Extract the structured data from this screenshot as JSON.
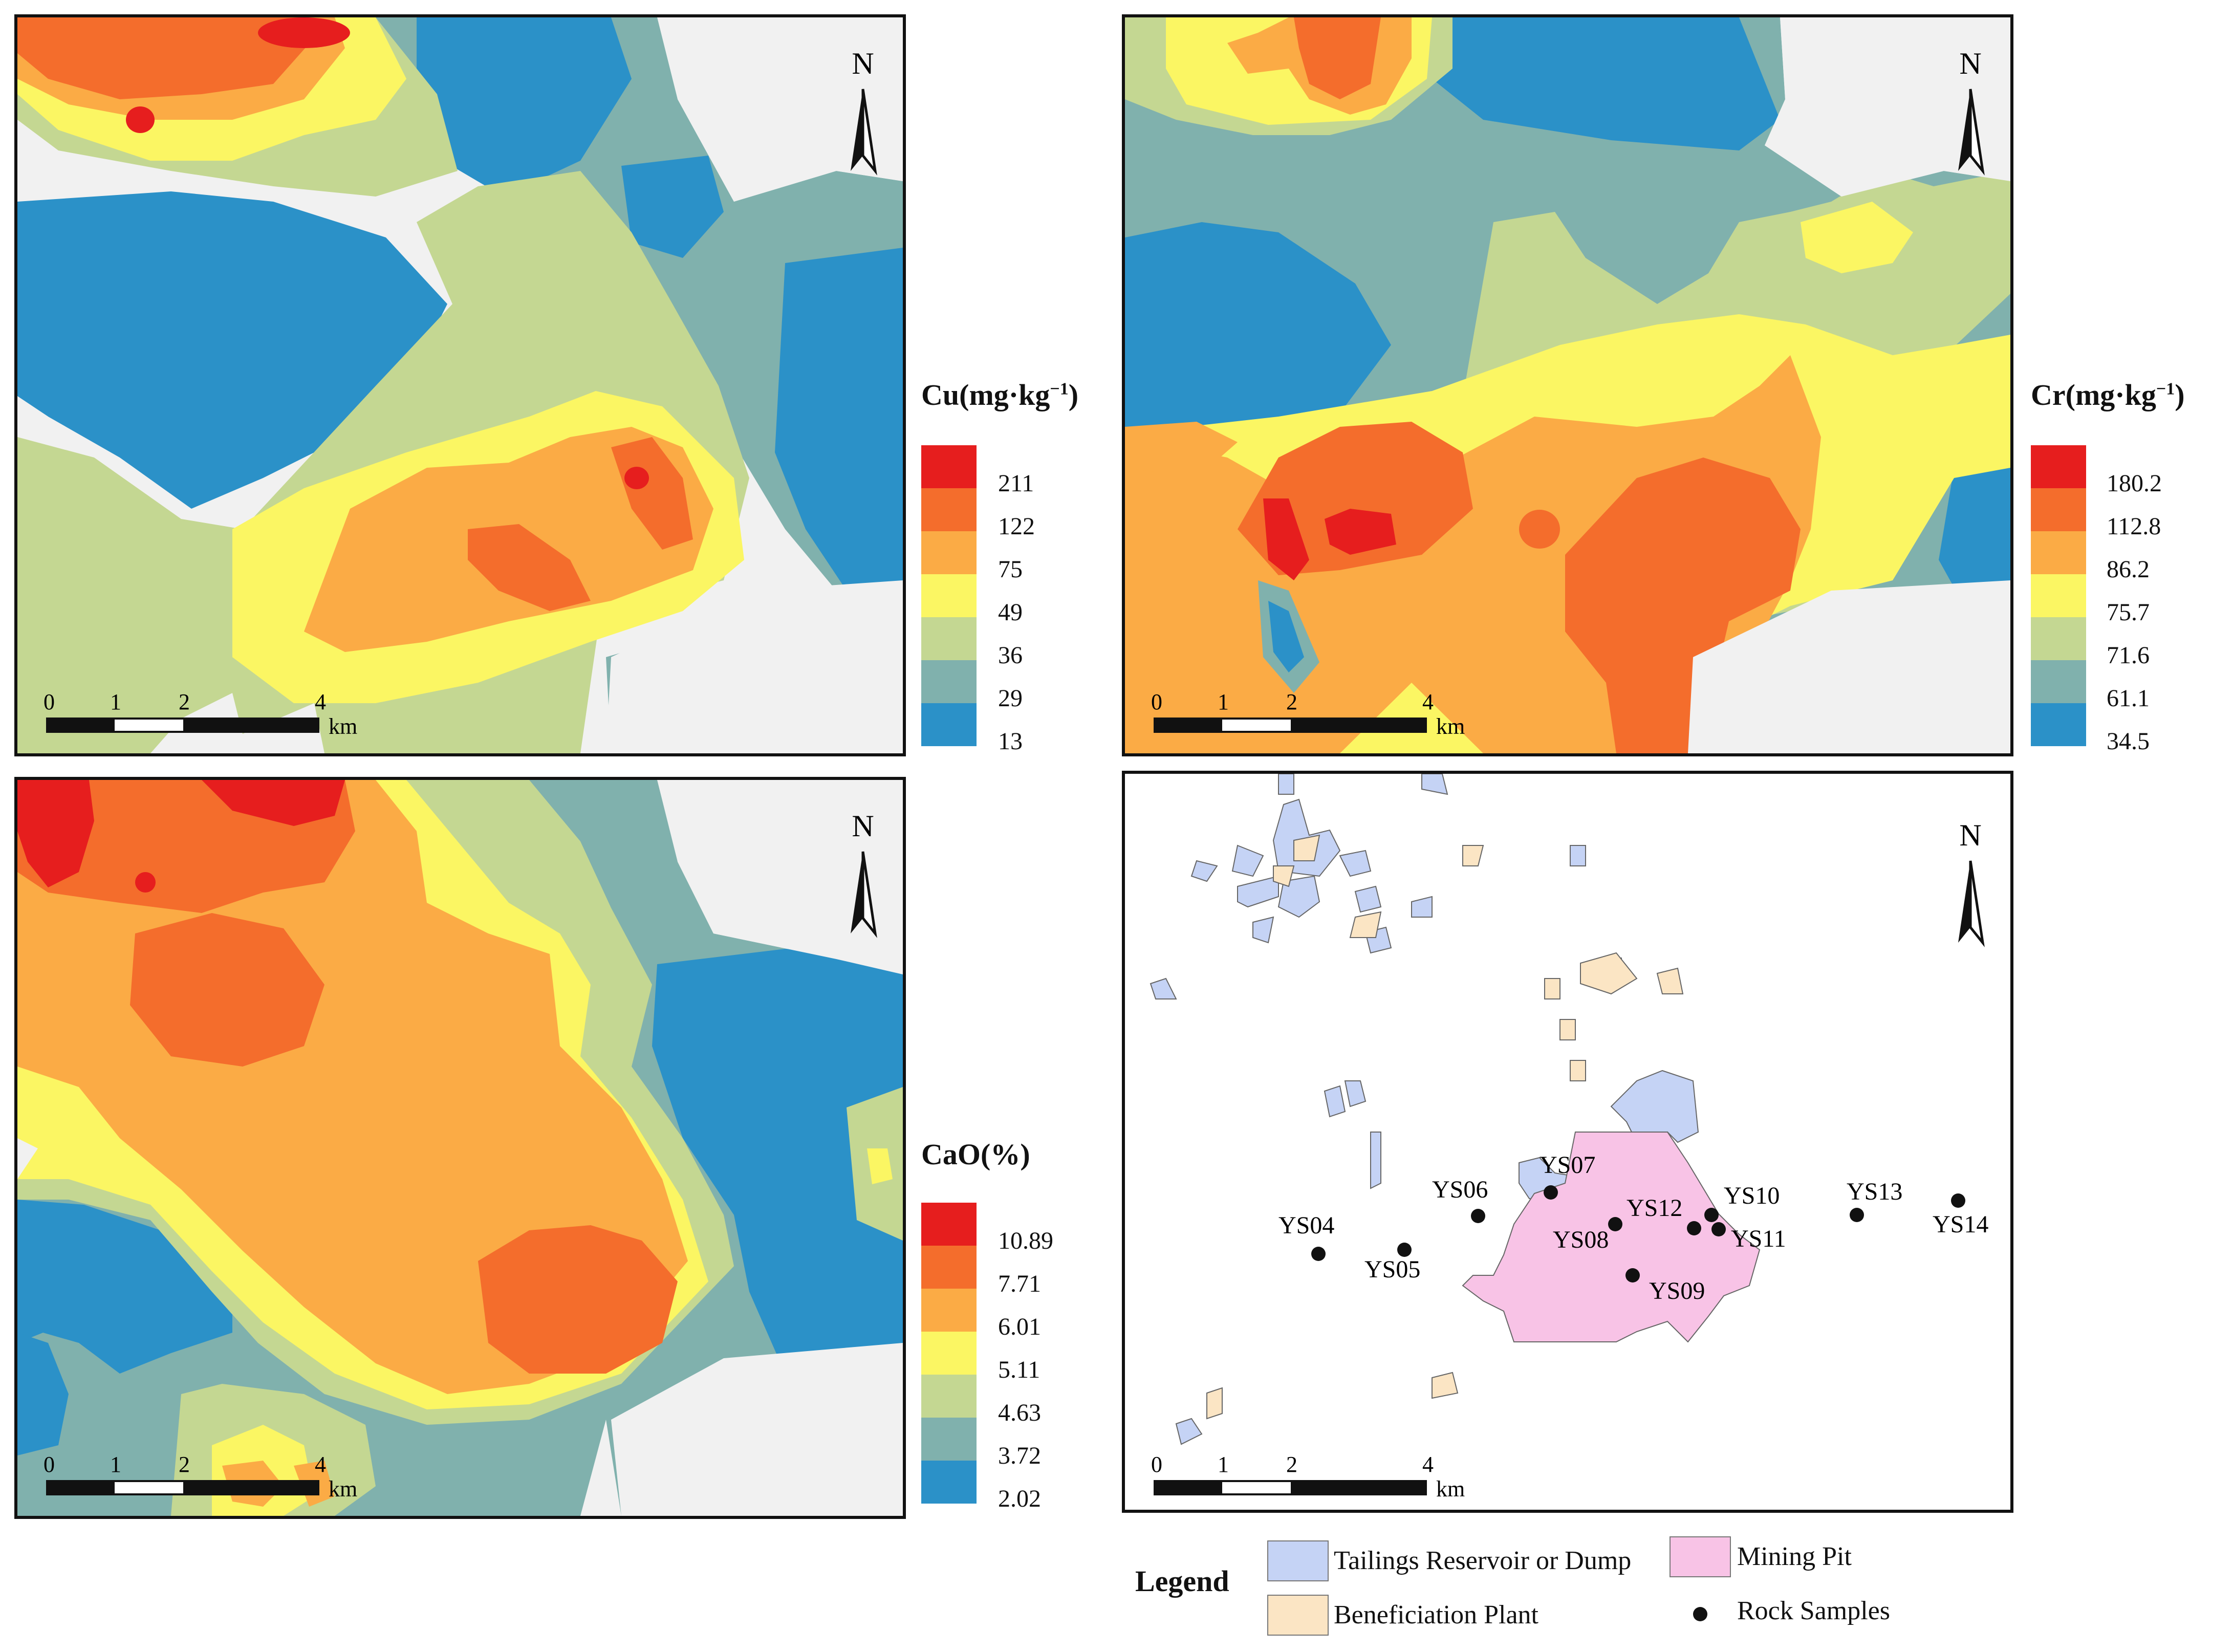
{
  "panels": {
    "cu": {
      "title_main": "Cu(mg·kg",
      "title_sup": "−1",
      "title_close": ")",
      "colors": [
        "#e61e1e",
        "#f46d2c",
        "#fbab45",
        "#fbf663",
        "#c4d792",
        "#80b1ad",
        "#2b91c8"
      ],
      "breaks": [
        "211",
        "122",
        "75",
        "49",
        "36",
        "29",
        "13"
      ]
    },
    "cr": {
      "title_main": "Cr(mg·kg",
      "title_sup": "−1",
      "title_close": ")",
      "colors": [
        "#e61e1e",
        "#f46d2c",
        "#fbab45",
        "#fbf663",
        "#c4d792",
        "#80b1ad",
        "#2b91c8"
      ],
      "breaks": [
        "180.2",
        "112.8",
        "86.2",
        "75.7",
        "71.6",
        "61.1",
        "34.5"
      ]
    },
    "cao": {
      "title_main": "CaO(%)",
      "colors": [
        "#e61e1e",
        "#f46d2c",
        "#fbab45",
        "#fbf663",
        "#c4d792",
        "#80b1ad",
        "#2b91c8"
      ],
      "breaks": [
        "10.89",
        "7.71",
        "6.01",
        "5.11",
        "4.63",
        "3.72",
        "2.02"
      ]
    }
  },
  "north_label": "N",
  "scale": {
    "ticks": [
      "0",
      "1",
      "2",
      "4"
    ],
    "unit": "km"
  },
  "samples": [
    "YS04",
    "YS05",
    "YS06",
    "YS07",
    "YS08",
    "YS09",
    "YS10",
    "YS11",
    "YS12",
    "YS13",
    "YS14"
  ],
  "legend": {
    "title": "Legend",
    "tailings": "Tailings Reservoir or Dump",
    "beneficiation": "Beneficiation Plant",
    "mining_pit": "Mining Pit",
    "rock_samples": "Rock Samples",
    "tailings_color": "#c5d3f5",
    "beneficiation_color": "#fbe5c4",
    "mining_pit_color": "#f8c3e6"
  }
}
